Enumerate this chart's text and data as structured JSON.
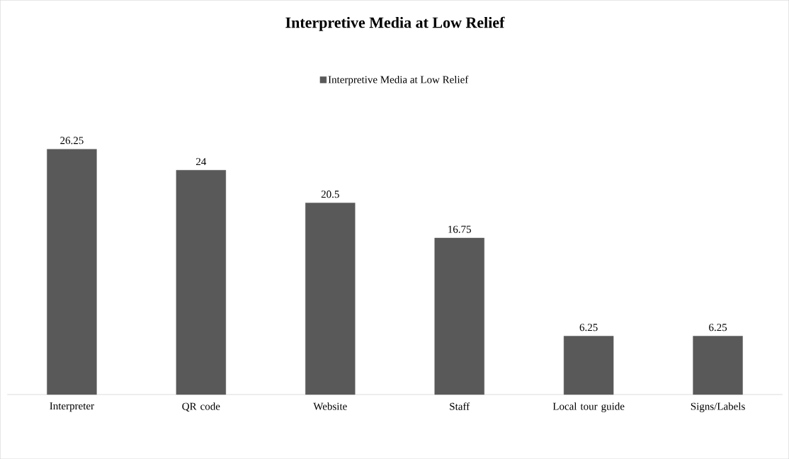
{
  "chart_data": {
    "type": "bar",
    "title": "Interpretive Media at Low Relief",
    "categories": [
      "Interpreter",
      "QR code",
      "Website",
      "Staff",
      "Local tour guide",
      "Signs/Labels"
    ],
    "series": [
      {
        "name": "Interpretive Media at Low Relief",
        "color": "#595959",
        "values": [
          26.25,
          24,
          20.5,
          16.75,
          6.25,
          6.25
        ]
      }
    ],
    "tick_labels": "x",
    "data_labels": true,
    "legend": "top"
  }
}
